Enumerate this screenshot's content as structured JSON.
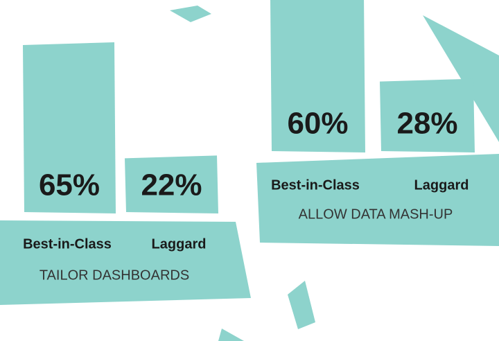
{
  "chart_data": [
    {
      "type": "bar",
      "title": "TAILOR DASHBOARDS",
      "categories": [
        "Best-in-Class",
        "Laggard"
      ],
      "values": [
        65,
        22
      ],
      "value_labels": [
        "65%",
        "22%"
      ],
      "color": "#8dd3cc"
    },
    {
      "type": "bar",
      "title": "ALLOW DATA MASH-UP",
      "categories": [
        "Best-in-Class",
        "Laggard"
      ],
      "values": [
        60,
        28
      ],
      "value_labels": [
        "60%",
        "28%"
      ],
      "color": "#8dd3cc"
    }
  ]
}
